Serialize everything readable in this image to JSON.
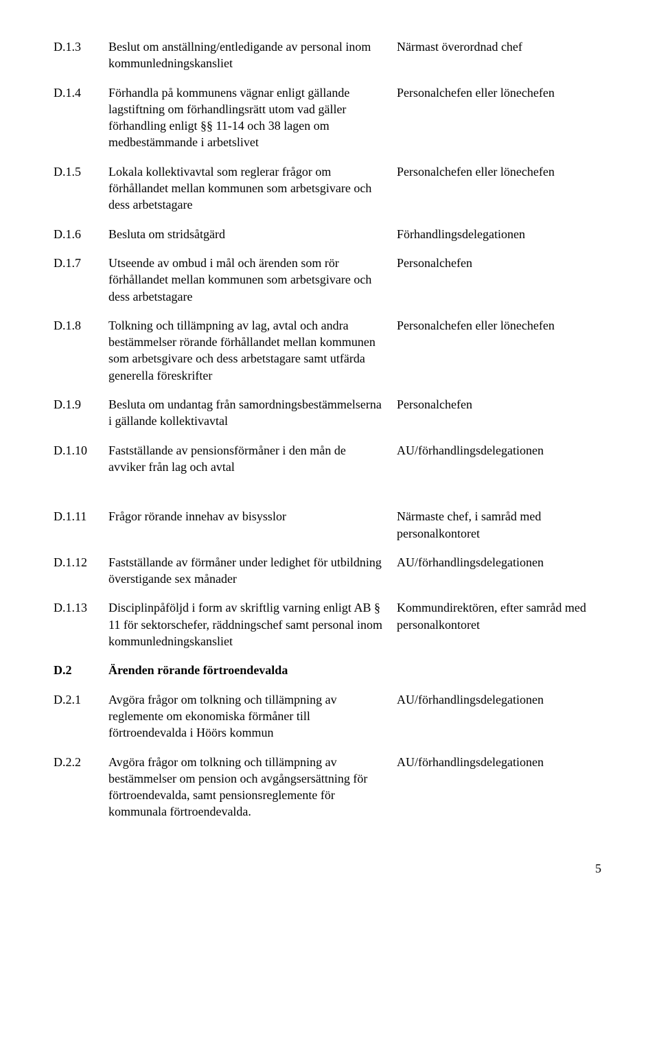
{
  "rows": [
    {
      "num": "D.1.3",
      "desc": "Beslut om anställning/entledigande av personal inom kommunledningskansliet",
      "right": "Närmast överordnad chef"
    },
    {
      "num": "D.1.4",
      "desc": "Förhandla på kommunens vägnar enligt gällande lagstiftning om förhandlingsrätt utom vad gäller förhandling enligt §§ 11-14 och 38 lagen om medbestämmande i arbetslivet",
      "right": "Personalchefen eller lönechefen"
    },
    {
      "num": "D.1.5",
      "desc": "Lokala kollektivavtal som reglerar frågor om förhållandet mellan kommunen som arbetsgivare och dess arbetstagare",
      "right": "Personalchefen eller lönechefen"
    },
    {
      "num": "D.1.6",
      "desc": "Besluta om stridsåtgärd",
      "right": "Förhandlingsdelegationen"
    },
    {
      "num": "D.1.7",
      "desc": "Utseende av ombud i mål och ärenden som rör förhållandet mellan kommunen som arbetsgivare och dess arbetstagare",
      "right": "Personalchefen"
    },
    {
      "num": "D.1.8",
      "desc": "Tolkning och tillämpning av lag, avtal och andra bestämmelser rörande förhållandet mellan kommunen som arbetsgivare och dess arbetstagare samt utfärda generella föreskrifter",
      "right": "Personalchefen eller lönechefen"
    },
    {
      "num": "D.1.9",
      "desc": "Besluta om undantag från samordningsbestämmelserna i gällande kollektivavtal",
      "right": "Personalchefen"
    },
    {
      "num": "D.1.10",
      "desc": "Fastställande av pensionsförmåner i den mån de avviker från lag och avtal",
      "right": "AU/förhandlingsdelegationen"
    }
  ],
  "rows2": [
    {
      "num": "D.1.11",
      "desc": "Frågor rörande innehav av bisysslor",
      "right": "Närmaste chef, i samråd med personalkontoret"
    },
    {
      "num": "D.1.12",
      "desc": "Fastställande av förmåner under ledighet för utbildning överstigande sex månader",
      "right": "AU/förhandlingsdelegationen"
    },
    {
      "num": "D.1.13",
      "desc": "Disciplinpåföljd i form av skriftlig varning enligt AB § 11 för sektorschefer, räddningschef samt personal inom kommunledningskansliet",
      "right": "Kommundirektören, efter samråd med personalkontoret"
    },
    {
      "num": "D.2",
      "desc": "Ärenden rörande förtroendevalda",
      "right": "",
      "bold": true
    },
    {
      "num": "D.2.1",
      "desc": "Avgöra frågor om tolkning och tillämpning av reglemente om ekonomiska förmåner till förtroendevalda i Höörs kommun",
      "right": "AU/förhandlingsdelegationen"
    },
    {
      "num": "D.2.2",
      "desc": "Avgöra frågor om tolkning och tillämpning av bestämmelser om pension och avgångsersättning för förtroendevalda, samt pensionsreglemente för kommunala förtroendevalda.",
      "right": "AU/förhandlingsdelegationen"
    }
  ],
  "page_number": "5"
}
